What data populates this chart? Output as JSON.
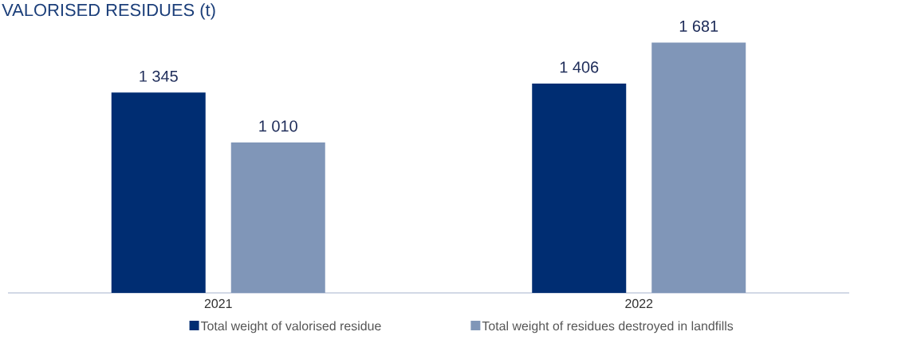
{
  "chart_data": {
    "type": "bar",
    "title": "VALORISED RESIDUES (t)",
    "categories": [
      "2021",
      "2022"
    ],
    "series": [
      {
        "name": "Total weight of valorised residue",
        "color": "#002d72",
        "values": [
          1345,
          1406
        ],
        "value_labels": [
          "1 345",
          "1 406"
        ]
      },
      {
        "name": "Total weight of residues destroyed in landfills",
        "color": "#8096b8",
        "values": [
          1010,
          1681
        ],
        "value_labels": [
          "1 010",
          "1 681"
        ]
      }
    ],
    "legend": "bottom"
  }
}
